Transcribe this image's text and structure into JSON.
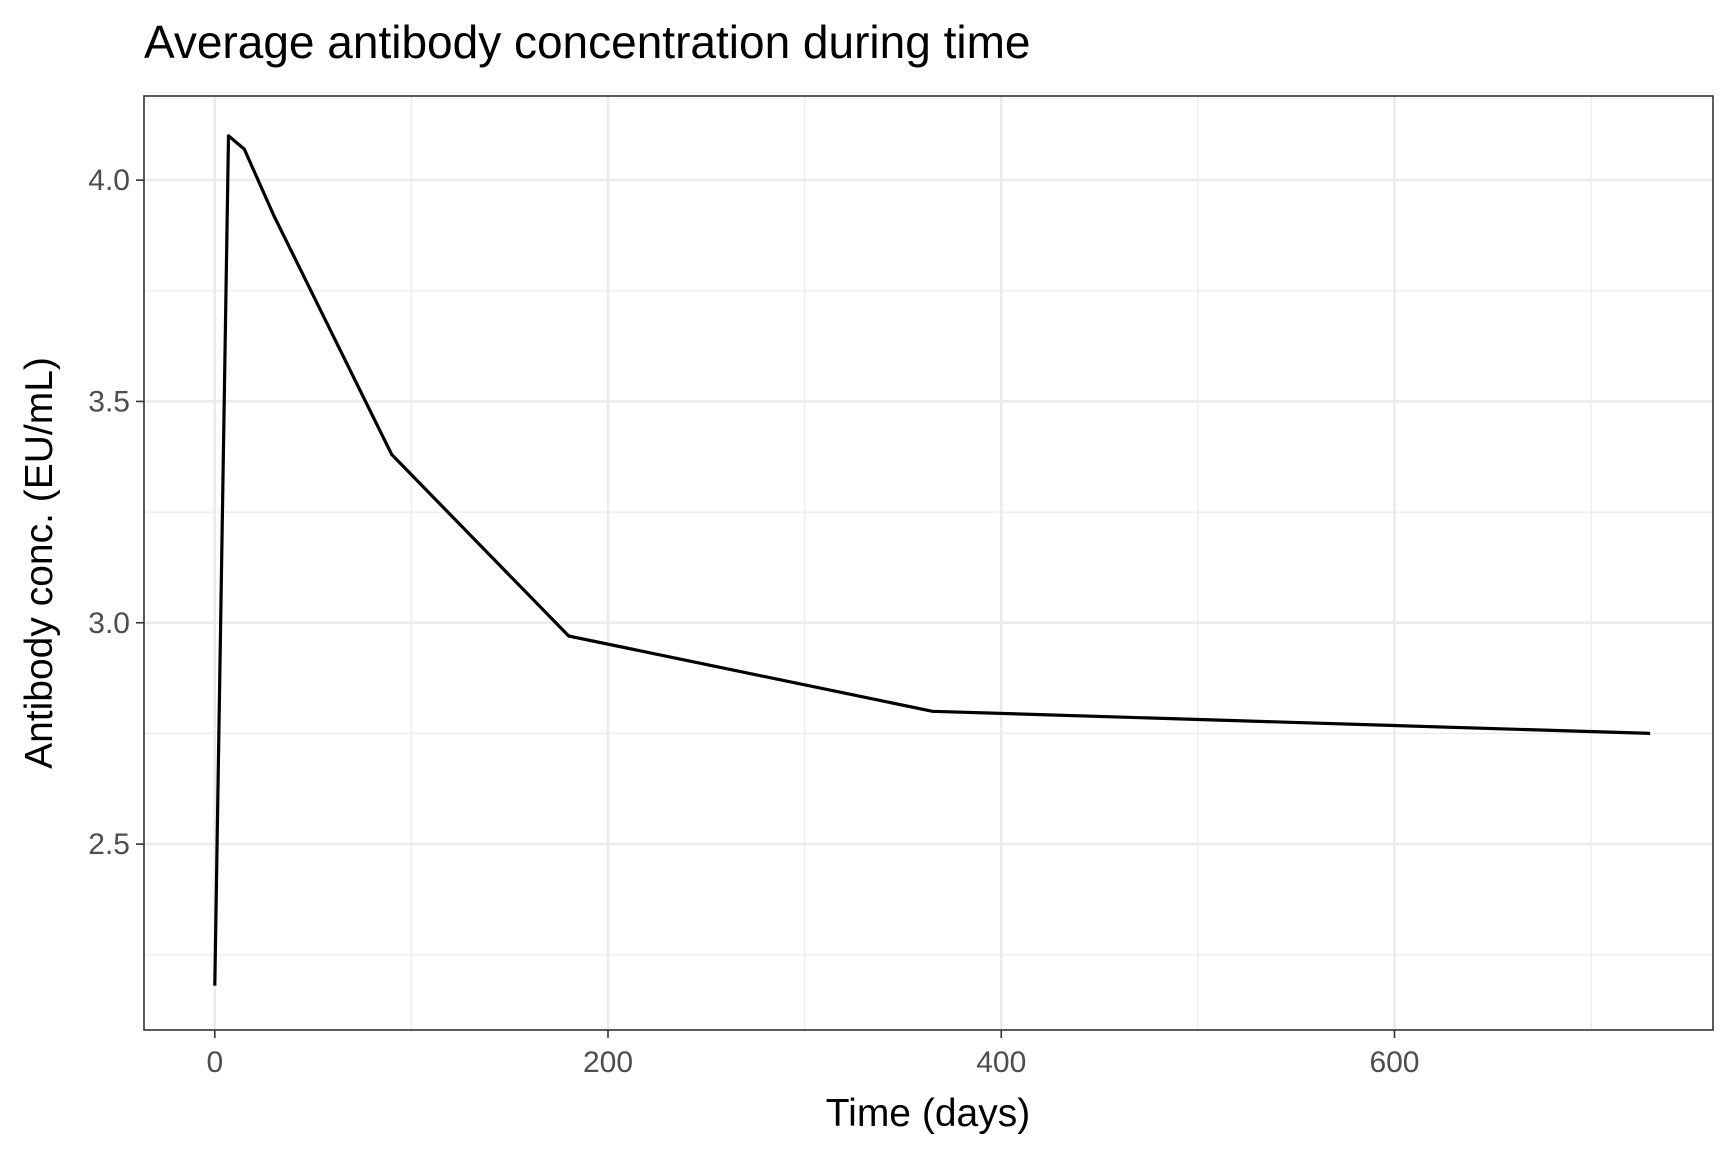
{
  "chart_data": {
    "type": "line",
    "title": "Average antibody concentration during time",
    "xlabel": "Time (days)",
    "ylabel": "Antibody conc. (EU/mL)",
    "xlim": [
      -36,
      762
    ],
    "ylim": [
      2.08,
      4.19
    ],
    "x_ticks": [
      0,
      200,
      400,
      600
    ],
    "x_tick_labels": [
      "0",
      "200",
      "400",
      "600"
    ],
    "x_minor_ticks": [
      100,
      300,
      500,
      700
    ],
    "y_ticks": [
      2.5,
      3.0,
      3.5,
      4.0
    ],
    "y_tick_labels": [
      "2.5",
      "3.0",
      "3.5",
      "4.0"
    ],
    "y_minor_ticks": [
      2.25,
      2.75,
      3.25,
      3.75
    ],
    "grid": true,
    "legend": "none",
    "series": [
      {
        "color": "#000000",
        "x": [
          0,
          7,
          15,
          30,
          90,
          180,
          365,
          730
        ],
        "y": [
          2.18,
          4.1,
          4.07,
          3.92,
          3.38,
          2.97,
          2.8,
          2.75
        ]
      }
    ],
    "colors": {
      "line": "#000000",
      "panel_border": "#333333",
      "grid_major": "#ebebeb",
      "grid_minor": "#ebebeb",
      "tick_label": "#4d4d4d"
    }
  }
}
